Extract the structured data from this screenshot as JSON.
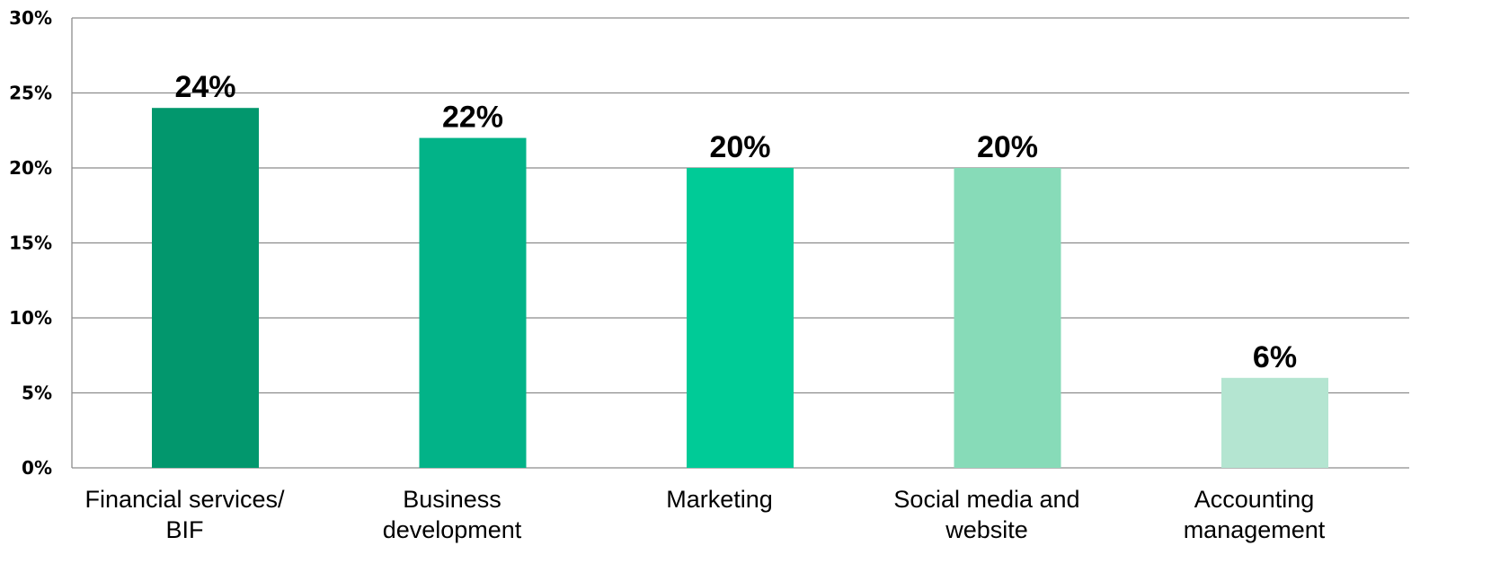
{
  "chart_data": {
    "type": "bar",
    "title": "",
    "xlabel": "",
    "ylabel": "",
    "categories": [
      [
        "Financial services/",
        "BIF"
      ],
      [
        "Business",
        "development"
      ],
      [
        "Marketing"
      ],
      [
        "Social media and",
        "website"
      ],
      [
        "Accounting",
        "management"
      ]
    ],
    "values": [
      24,
      22,
      20,
      20,
      6
    ],
    "value_labels": [
      "24%",
      "22%",
      "20%",
      "20%",
      "6%"
    ],
    "bar_colors": [
      "#02976D",
      "#02B388",
      "#00CB97",
      "#87DBB8",
      "#B4E5D1"
    ],
    "ylim": [
      0,
      30
    ],
    "yticks": [
      {
        "value": 0,
        "label": "0%"
      },
      {
        "value": 5,
        "label": "5%"
      },
      {
        "value": 10,
        "label": "10%"
      },
      {
        "value": 15,
        "label": "15%"
      },
      {
        "value": 20,
        "label": "20%"
      },
      {
        "value": 25,
        "label": "25%"
      },
      {
        "value": 30,
        "label": "30%"
      }
    ],
    "grid": true,
    "legend": "none"
  }
}
